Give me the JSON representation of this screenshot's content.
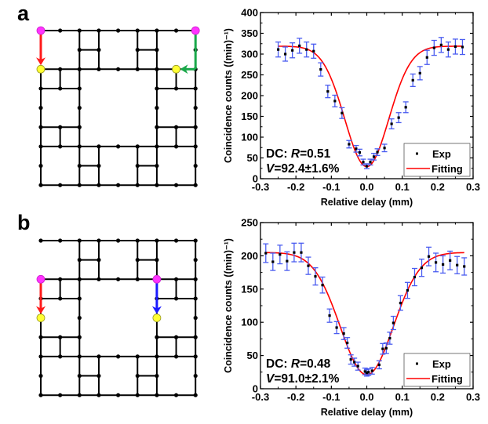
{
  "panels": [
    {
      "label": "a",
      "graph": {
        "nodes_per_side": 9,
        "start_color": "#ff33ff",
        "end_color": "#ffff33",
        "arrows": [
          {
            "from": [
              0,
              0
            ],
            "to": [
              0,
              2
            ],
            "color": "#ff1a1a"
          },
          {
            "from": [
              8,
              0
            ],
            "to": [
              8,
              2
            ],
            "via": [
              7,
              2
            ],
            "color": "#1aa84a"
          }
        ],
        "starts": [
          [
            0,
            0
          ],
          [
            8,
            0
          ]
        ],
        "ends": [
          [
            0,
            2
          ],
          [
            7,
            2
          ]
        ]
      }
    },
    {
      "label": "b",
      "graph": {
        "nodes_per_side": 9,
        "start_color": "#ff33ff",
        "end_color": "#ffff33",
        "arrows": [
          {
            "from": [
              0,
              2
            ],
            "to": [
              0,
              4
            ],
            "color": "#ff1a1a"
          },
          {
            "from": [
              6,
              2
            ],
            "to": [
              6,
              4
            ],
            "color": "#1a1aff"
          }
        ],
        "starts": [
          [
            0,
            2
          ],
          [
            6,
            2
          ]
        ],
        "ends": [
          [
            0,
            4
          ],
          [
            6,
            4
          ]
        ]
      }
    }
  ],
  "graph_edges": {
    "description": "T-fractal-like graph on a 9x9 lattice",
    "horizontal": [
      [
        0,
        0,
        8
      ],
      [
        2,
        1,
        3
      ],
      [
        5,
        1,
        6
      ],
      [
        0,
        2,
        8
      ],
      [
        0,
        3,
        2
      ],
      [
        6,
        3,
        8
      ],
      [
        0,
        5,
        2
      ],
      [
        6,
        5,
        8
      ],
      [
        0,
        6,
        8
      ],
      [
        2,
        7,
        3
      ],
      [
        5,
        7,
        6
      ],
      [
        0,
        8,
        8
      ]
    ],
    "vertical": [
      [
        0,
        2,
        8
      ],
      [
        2,
        0,
        8
      ],
      [
        3,
        0,
        2
      ],
      [
        5,
        0,
        2
      ],
      [
        6,
        0,
        8
      ],
      [
        8,
        0,
        8
      ],
      [
        1,
        2,
        3
      ],
      [
        7,
        2,
        3
      ],
      [
        1,
        5,
        6
      ],
      [
        7,
        5,
        6
      ],
      [
        3,
        6,
        8
      ],
      [
        5,
        6,
        8
      ]
    ],
    "dots": "all-lattice-nodes-on-edges"
  },
  "chart_data": [
    {
      "type": "scatter",
      "title": "",
      "xlabel": "Relative delay (mm)",
      "ylabel": "Coincidence counts  ((min)⁻¹)",
      "xlim": [
        -0.3,
        0.3
      ],
      "ylim": [
        0,
        400
      ],
      "xticks": [
        "-0.3",
        "-0.2",
        "-0.1",
        "0.0",
        "0.1",
        "0.2",
        "0.3"
      ],
      "yticks": [
        "0",
        "50",
        "100",
        "150",
        "200",
        "250",
        "300",
        "350",
        "400"
      ],
      "legend": {
        "position": "bottom-right",
        "entries": [
          "Exp",
          "Fitting"
        ]
      },
      "annotation": {
        "line1_prefix": "DC: ",
        "line1_var": "R",
        "line1_value": "=0.51",
        "line2_var": "V",
        "line2_value": "=92.4±1.6%"
      },
      "series": [
        {
          "name": "Exp",
          "color": "#000000",
          "error_color": "#4a5cf0",
          "x": [
            -0.25,
            -0.23,
            -0.21,
            -0.19,
            -0.17,
            -0.15,
            -0.13,
            -0.11,
            -0.09,
            -0.07,
            -0.05,
            -0.03,
            -0.02,
            -0.01,
            0.0,
            0.01,
            0.02,
            0.03,
            0.05,
            0.07,
            0.09,
            0.11,
            0.13,
            0.15,
            0.17,
            0.19,
            0.21,
            0.23,
            0.25,
            0.27
          ],
          "y": [
            311,
            300,
            309,
            320,
            311,
            307,
            263,
            210,
            187,
            158,
            83,
            72,
            63,
            40,
            30,
            40,
            53,
            64,
            74,
            132,
            147,
            172,
            237,
            254,
            292,
            315,
            322,
            311,
            318,
            317
          ],
          "yerr": [
            18,
            17,
            18,
            18,
            18,
            17,
            16,
            15,
            14,
            13,
            9,
            8,
            8,
            7,
            6,
            7,
            8,
            8,
            9,
            12,
            12,
            13,
            15,
            16,
            17,
            18,
            18,
            18,
            18,
            18
          ]
        },
        {
          "name": "Fitting",
          "color": "#ff0000",
          "model": "gaussian-dip",
          "baseline": 319,
          "depth": 290,
          "center": 0.0,
          "sigma": 0.062,
          "x_range": [
            -0.25,
            0.27
          ]
        }
      ]
    },
    {
      "type": "scatter",
      "title": "",
      "xlabel": "Relative delay (mm)",
      "ylabel": "Coincidence counts  ((min)⁻¹)",
      "xlim": [
        -0.3,
        0.3
      ],
      "ylim": [
        0,
        250
      ],
      "xticks": [
        "-0.3",
        "-0.2",
        "-0.1",
        "0.0",
        "0.1",
        "0.2",
        "0.3"
      ],
      "yticks": [
        "0",
        "50",
        "100",
        "150",
        "200",
        "250"
      ],
      "legend": {
        "position": "bottom-right",
        "entries": [
          "Exp",
          "Fitting"
        ]
      },
      "annotation": {
        "line1_prefix": "DC: ",
        "line1_var": "R",
        "line1_value": "=0.48",
        "line2_var": "V",
        "line2_value": "=91.0±2.1%"
      },
      "series": [
        {
          "name": "Exp",
          "color": "#000000",
          "error_color": "#4a5cf0",
          "x": [
            -0.285,
            -0.265,
            -0.245,
            -0.225,
            -0.205,
            -0.185,
            -0.165,
            -0.145,
            -0.125,
            -0.105,
            -0.085,
            -0.065,
            -0.055,
            -0.045,
            -0.035,
            -0.025,
            -0.005,
            0.0,
            0.005,
            0.015,
            0.035,
            0.045,
            0.055,
            0.065,
            0.075,
            0.095,
            0.115,
            0.135,
            0.155,
            0.175,
            0.195,
            0.215,
            0.235,
            0.255,
            0.275
          ],
          "y": [
            204,
            191,
            202,
            192,
            205,
            205,
            185,
            169,
            156,
            110,
            92,
            83,
            69,
            44,
            40,
            34,
            26,
            24,
            25,
            27,
            36,
            60,
            61,
            76,
            99,
            129,
            148,
            168,
            182,
            199,
            190,
            187,
            193,
            186,
            184
          ],
          "yerr": [
            14,
            13,
            14,
            14,
            14,
            14,
            13,
            13,
            12,
            10,
            9,
            9,
            8,
            7,
            6,
            6,
            5,
            5,
            5,
            5,
            6,
            8,
            8,
            9,
            10,
            11,
            12,
            13,
            13,
            14,
            14,
            13,
            14,
            13,
            13
          ]
        },
        {
          "name": "Fitting",
          "color": "#ff0000",
          "model": "gaussian-dip",
          "baseline": 205,
          "depth": 184,
          "center": 0.0,
          "sigma": 0.075,
          "x_range": [
            -0.285,
            0.275
          ]
        }
      ]
    }
  ]
}
